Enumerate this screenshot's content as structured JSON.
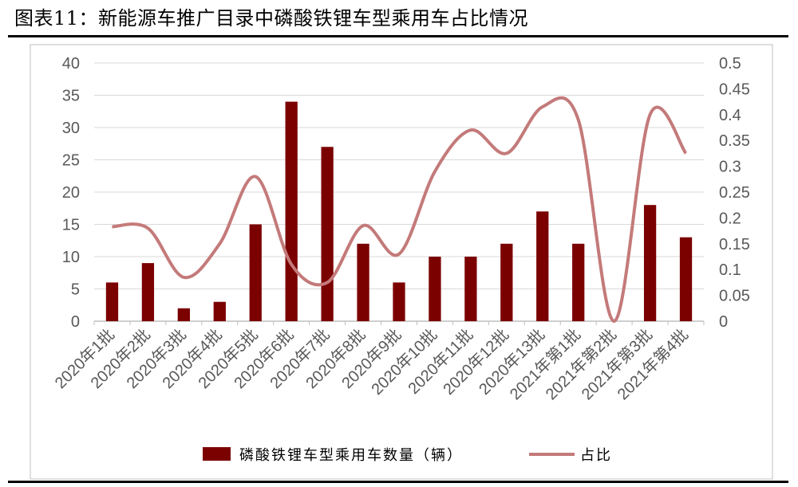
{
  "figure": {
    "title": "图表11：新能源车推广目录中磷酸铁锂车型乘用车占比情况"
  },
  "colors": {
    "bar": "#7b0000",
    "line": "#c47a7a",
    "grid": "#d9d9d9",
    "frame": "#bfbfbf"
  },
  "chart_data": {
    "type": "bar",
    "categories": [
      "2020年1批",
      "2020年2批",
      "2020年3批",
      "2020年4批",
      "2020年5批",
      "2020年6批",
      "2020年7批",
      "2020年8批",
      "2020年9批",
      "2020年10批",
      "2020年11批",
      "2020年12批",
      "2020年13批",
      "2021年第1批",
      "2021年第2批",
      "2021年第3批",
      "2021年第4批"
    ],
    "series": [
      {
        "name": "磷酸铁锂车型乘用车数量（辆）",
        "type": "bar",
        "axis": "left",
        "values": [
          6,
          9,
          2,
          3,
          15,
          34,
          27,
          12,
          6,
          10,
          10,
          12,
          17,
          12,
          0,
          18,
          13
        ]
      },
      {
        "name": "占比",
        "type": "line",
        "axis": "right",
        "values": [
          0.183,
          0.18,
          0.085,
          0.15,
          0.28,
          0.11,
          0.075,
          0.185,
          0.13,
          0.29,
          0.37,
          0.325,
          0.415,
          0.39,
          0.0,
          0.4,
          0.325
        ]
      }
    ],
    "y_left": {
      "min": 0,
      "max": 40,
      "ticks": [
        "0",
        "5",
        "10",
        "15",
        "20",
        "25",
        "30",
        "35",
        "40"
      ]
    },
    "y_right": {
      "min": 0,
      "max": 0.5,
      "ticks": [
        "0",
        "0.05",
        "0.1",
        "0.15",
        "0.2",
        "0.25",
        "0.3",
        "0.35",
        "0.4",
        "0.45",
        "0.5"
      ]
    },
    "grid": true,
    "legend_position": "bottom"
  }
}
